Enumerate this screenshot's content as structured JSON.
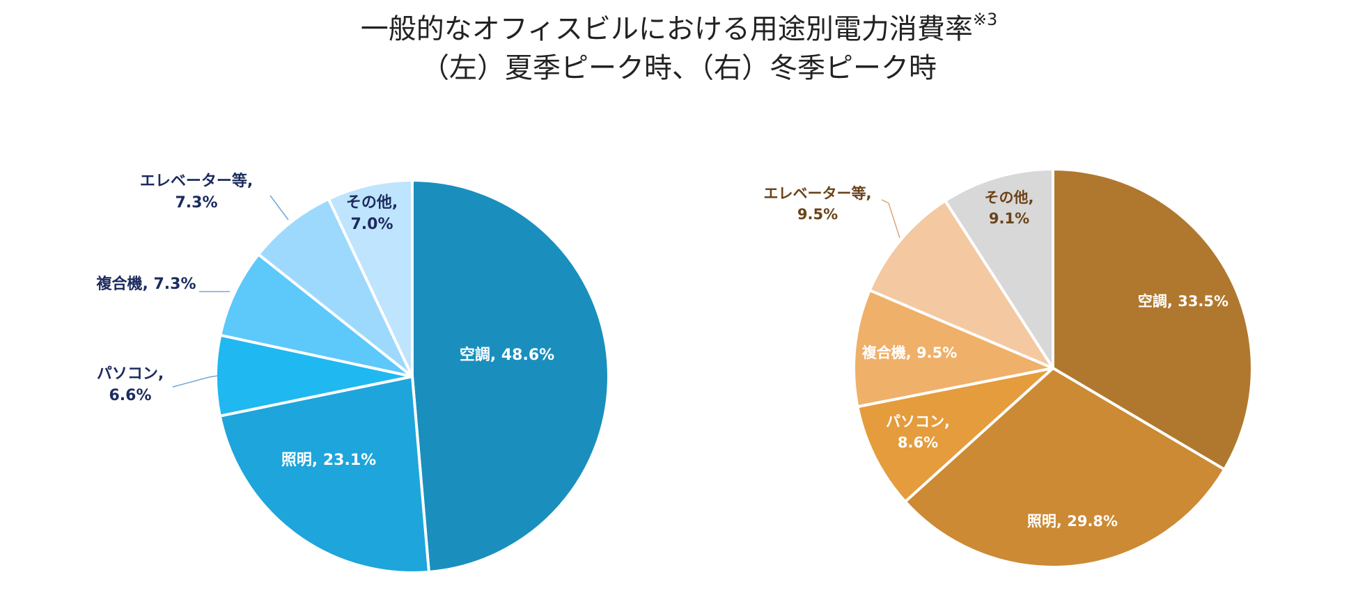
{
  "title": {
    "line1": "一般的なオフィスビルにおける用途別電力消費率",
    "note": "※3",
    "line2": "（左）夏季ピーク時、（右）冬季ピーク時"
  },
  "chart_data": [
    {
      "type": "pie",
      "unit": "%",
      "slices": [
        {
          "label": "空調",
          "value": 48.6,
          "color": "#1a8fbe",
          "text_color": "#ffffff"
        },
        {
          "label": "照明",
          "value": 23.1,
          "color": "#1ea5db",
          "text_color": "#ffffff"
        },
        {
          "label": "パソコン",
          "value": 6.6,
          "color": "#20b8f0",
          "text_color": "#1c2b5e"
        },
        {
          "label": "複合機",
          "value": 7.3,
          "color": "#5dc8fa",
          "text_color": "#1c2b5e"
        },
        {
          "label": "エレベーター等",
          "value": 7.3,
          "color": "#9dd9fc",
          "text_color": "#1c2b5e"
        },
        {
          "label": "その他",
          "value": 7.0,
          "color": "#bfe4fd",
          "text_color": "#1c2b5e"
        }
      ]
    },
    {
      "type": "pie",
      "unit": "%",
      "slices": [
        {
          "label": "空調",
          "value": 33.5,
          "color": "#b0782e",
          "text_color": "#ffffff"
        },
        {
          "label": "照明",
          "value": 29.8,
          "color": "#cc8a34",
          "text_color": "#ffffff"
        },
        {
          "label": "パソコン",
          "value": 8.6,
          "color": "#e59c3c",
          "text_color": "#ffffff"
        },
        {
          "label": "複合機",
          "value": 9.5,
          "color": "#efb06a",
          "text_color": "#ffffff"
        },
        {
          "label": "エレベーター等",
          "value": 9.5,
          "color": "#f4c8a0",
          "text_color": "#6b4218"
        },
        {
          "label": "その他",
          "value": 9.1,
          "color": "#d8d8d8",
          "text_color": "#6b4218"
        }
      ]
    }
  ]
}
